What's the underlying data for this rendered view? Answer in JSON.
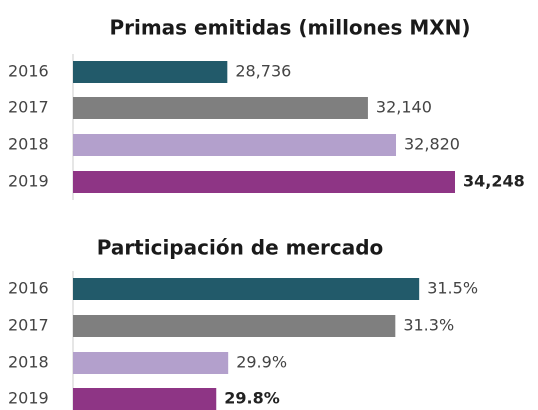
{
  "chart_data": [
    {
      "type": "bar",
      "orientation": "horizontal",
      "title": "Primas emitidas (millones MXN)",
      "categories": [
        "2016",
        "2017",
        "2018",
        "2019"
      ],
      "values": [
        28736,
        32140,
        32820,
        34248
      ],
      "value_labels": [
        "28,736",
        "32,140",
        "32,820",
        "34,248"
      ],
      "colors": [
        "#225a6a",
        "#7f7f7f",
        "#b3a0cc",
        "#8e3585"
      ],
      "xlim": [
        25000,
        34248
      ]
    },
    {
      "type": "bar",
      "orientation": "horizontal",
      "title": "Participación de mercado",
      "categories": [
        "2016",
        "2017",
        "2018",
        "2019"
      ],
      "values": [
        31.5,
        31.3,
        29.9,
        29.8
      ],
      "value_labels": [
        "31.5%",
        "31.3%",
        "29.9%",
        "29.8%"
      ],
      "colors": [
        "#225a6a",
        "#7f7f7f",
        "#b3a0cc",
        "#8e3585"
      ],
      "xlim": [
        28.6,
        31.8
      ]
    }
  ]
}
